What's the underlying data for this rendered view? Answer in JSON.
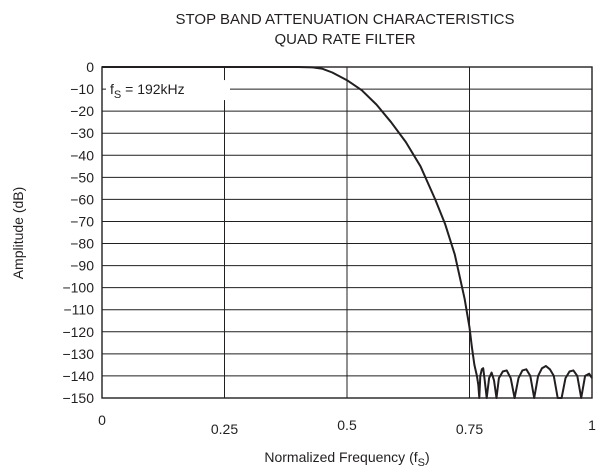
{
  "chart_data": {
    "type": "line",
    "title": "STOP BAND ATTENUATION CHARACTERISTICS",
    "subtitle": "QUAD RATE FILTER",
    "xlabel": "Normalized Frequency (f",
    "xlabel_sub": "S",
    "xlabel_suffix": ")",
    "ylabel": "Amplitude (dB)",
    "xlim": [
      0,
      1
    ],
    "ylim": [
      -150,
      0
    ],
    "xticks": [
      0,
      0.25,
      0.5,
      0.75,
      1
    ],
    "xtick_labels": [
      "0",
      "0.25",
      "0.5",
      "0.75",
      "1"
    ],
    "yticks": [
      0,
      -10,
      -20,
      -30,
      -40,
      -50,
      -60,
      -70,
      -80,
      -90,
      -100,
      -110,
      -120,
      -130,
      -140,
      -150
    ],
    "ytick_labels": [
      "0",
      "−10",
      "−20",
      "−30",
      "−40",
      "−50",
      "−60",
      "−70",
      "−80",
      "−90",
      "−100",
      "−110",
      "−120",
      "−130",
      "−140",
      "−150"
    ],
    "grid": true,
    "annotation": {
      "text_main": "f",
      "text_sub": "S",
      "text_rest": " = 192kHz"
    },
    "series": [
      {
        "x": [
          0,
          0.4,
          0.43,
          0.45,
          0.47,
          0.5,
          0.53,
          0.56,
          0.59,
          0.62,
          0.65,
          0.68,
          0.7,
          0.72,
          0.73,
          0.74,
          0.75,
          0.755,
          0.76,
          0.765,
          0.768,
          0.77,
          0.772,
          0.775,
          0.778,
          0.781,
          0.785,
          0.79,
          0.795,
          0.8,
          0.805,
          0.81,
          0.818,
          0.826,
          0.834,
          0.842,
          0.85,
          0.858,
          0.866,
          0.874,
          0.882,
          0.89,
          0.898,
          0.906,
          0.914,
          0.922,
          0.93,
          0.938,
          0.946,
          0.954,
          0.962,
          0.97,
          0.978,
          0.986,
          0.994,
          1.0
        ],
        "y": [
          0,
          0,
          -0.2,
          -0.8,
          -2.5,
          -6,
          -10.5,
          -17,
          -25,
          -34,
          -45,
          -60,
          -71,
          -85,
          -95,
          -105,
          -118,
          -127,
          -135,
          -140,
          -144,
          -150,
          -140,
          -137,
          -136.5,
          -142,
          -150,
          -141,
          -138.5,
          -142,
          -150,
          -141,
          -138,
          -137.5,
          -141,
          -150,
          -141,
          -137.5,
          -137,
          -140,
          -150,
          -140,
          -136.5,
          -135.5,
          -137,
          -140,
          -150,
          -150,
          -141,
          -138,
          -137.5,
          -140,
          -150,
          -140,
          -139,
          -141
        ]
      }
    ]
  }
}
